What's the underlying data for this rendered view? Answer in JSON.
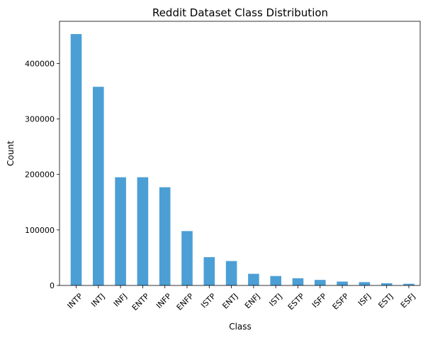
{
  "chart_data": {
    "type": "bar",
    "title": "Reddit Dataset Class Distribution",
    "xlabel": "Class",
    "ylabel": "Count",
    "categories": [
      "INTP",
      "INTJ",
      "INFJ",
      "ENTP",
      "INFP",
      "ENFP",
      "ISTP",
      "ENTJ",
      "ENFJ",
      "ISTJ",
      "ESTP",
      "ISFP",
      "ESFP",
      "ISFJ",
      "ESTJ",
      "ESFJ"
    ],
    "values": [
      453000,
      358000,
      195000,
      195000,
      177000,
      98000,
      51000,
      44000,
      21000,
      17000,
      13000,
      10000,
      7000,
      6000,
      4000,
      3000
    ],
    "ylim": [
      0,
      476000
    ],
    "yticks": [
      0,
      100000,
      200000,
      300000,
      400000
    ],
    "bar_color": "#4c9fd5",
    "grid": false,
    "legend": "none"
  }
}
